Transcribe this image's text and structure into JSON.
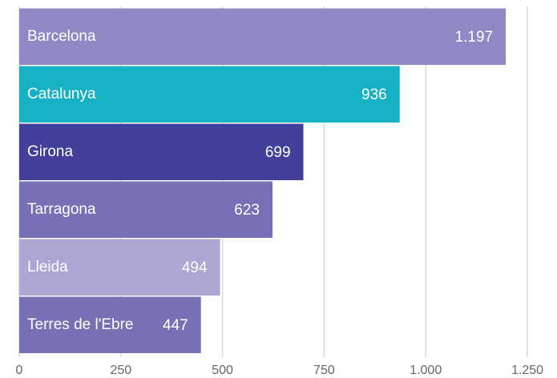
{
  "chart_data": {
    "type": "bar",
    "orientation": "horizontal",
    "categories": [
      "Barcelona",
      "Catalunya",
      "Girona",
      "Tarragona",
      "Lleida",
      "Terres de l'Ebre"
    ],
    "values": [
      1197,
      936,
      699,
      623,
      494,
      447
    ],
    "value_labels": [
      "1.197",
      "936",
      "699",
      "623",
      "494",
      "447"
    ],
    "colors": [
      "#8e89c5",
      "#17b1c5",
      "#43409b",
      "#7671b4",
      "#aca6d4",
      "#7671b4"
    ],
    "xlim": [
      0,
      1250
    ],
    "xticks": [
      0,
      250,
      500,
      750,
      {
        "value": 1000,
        "label": "1.000"
      },
      {
        "value": 1250,
        "label": "1.250"
      }
    ],
    "grid": true
  }
}
